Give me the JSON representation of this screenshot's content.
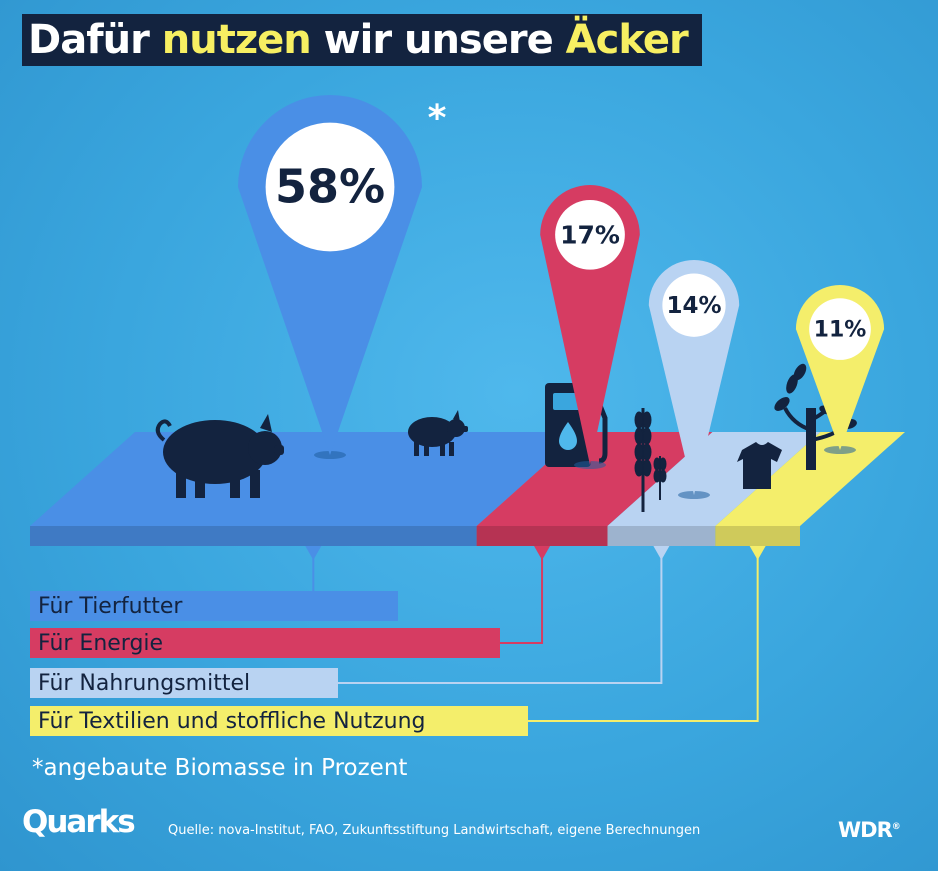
{
  "title": {
    "part1": "Dafür",
    "part2": "nutzen",
    "part3": "wir unsere",
    "part4": "Äcker"
  },
  "chart_data": {
    "type": "pie",
    "unit": "%",
    "categories": [
      "Für Tierfutter",
      "Für Energie",
      "Für Nahrungsmittel",
      "Für Textilien und stoffliche Nutzung"
    ],
    "values": [
      58,
      17,
      14,
      11
    ],
    "value_labels": [
      "58%",
      "17%",
      "14%",
      "11%"
    ],
    "colors": [
      "#4a8fe6",
      "#d63c62",
      "#b9d3f2",
      "#f4ee6b"
    ],
    "annotation": "*"
  },
  "footnote": "*angebaute Biomasse in Prozent",
  "source": "Quelle: nova-Institut, FAO, Zukunftsstiftung Landwirtschaft, eigene Berechnungen",
  "logos": {
    "left": "Quarks",
    "right": "WDR"
  },
  "icons": [
    "pig-large-icon",
    "pig-small-icon",
    "fuel-pump-icon",
    "wheat-icon",
    "tshirt-icon",
    "tree-icon"
  ],
  "colors": {
    "title_bg": "#13233f",
    "title_accent": "#f7ef62",
    "text_dark": "#13233f"
  }
}
